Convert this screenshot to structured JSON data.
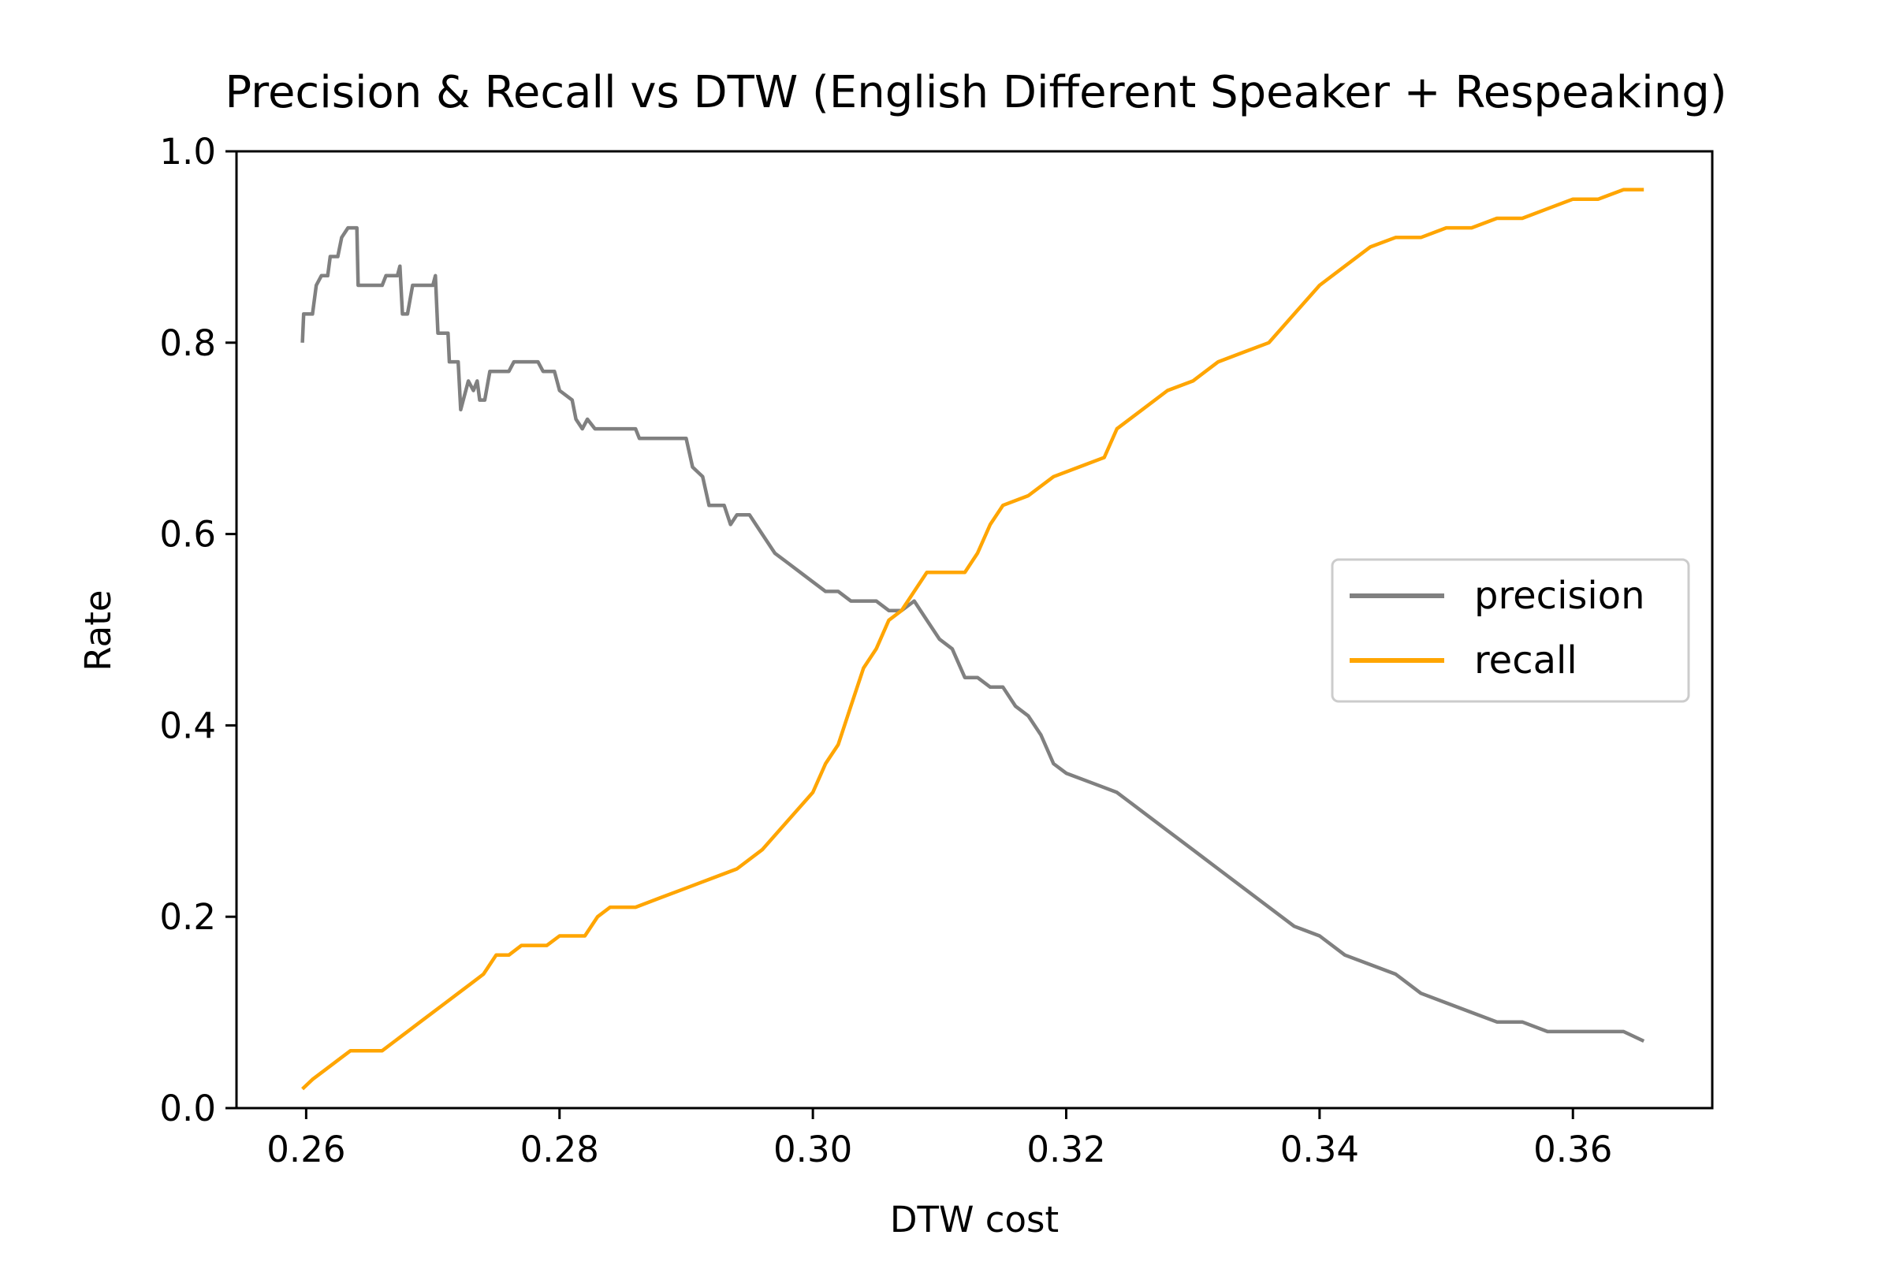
{
  "chart_data": {
    "type": "line",
    "title": "Precision & Recall vs DTW (English Different Speaker + Respeaking)",
    "xlabel": "DTW cost",
    "ylabel": "Rate",
    "xlim": [
      0.2545,
      0.371
    ],
    "ylim": [
      0.0,
      1.0
    ],
    "xticks": [
      "0.26",
      "0.28",
      "0.30",
      "0.32",
      "0.34",
      "0.36"
    ],
    "xtick_values": [
      0.26,
      0.28,
      0.3,
      0.32,
      0.34,
      0.36
    ],
    "yticks": [
      "0.0",
      "0.2",
      "0.4",
      "0.6",
      "0.8",
      "1.0"
    ],
    "ytick_values": [
      0.0,
      0.2,
      0.4,
      0.6,
      0.8,
      1.0
    ],
    "grid": false,
    "legend_position": "center-right",
    "series": [
      {
        "name": "precision",
        "color": "#808080",
        "points": [
          [
            0.2597,
            0.8
          ],
          [
            0.2598,
            0.83
          ],
          [
            0.2605,
            0.83
          ],
          [
            0.2608,
            0.86
          ],
          [
            0.2612,
            0.87
          ],
          [
            0.2617,
            0.87
          ],
          [
            0.2619,
            0.89
          ],
          [
            0.2625,
            0.89
          ],
          [
            0.2628,
            0.91
          ],
          [
            0.2633,
            0.92
          ],
          [
            0.264,
            0.92
          ],
          [
            0.2641,
            0.86
          ],
          [
            0.266,
            0.86
          ],
          [
            0.2663,
            0.87
          ],
          [
            0.2672,
            0.87
          ],
          [
            0.2674,
            0.88
          ],
          [
            0.2676,
            0.83
          ],
          [
            0.268,
            0.83
          ],
          [
            0.2684,
            0.86
          ],
          [
            0.27,
            0.86
          ],
          [
            0.2702,
            0.87
          ],
          [
            0.2704,
            0.81
          ],
          [
            0.2712,
            0.81
          ],
          [
            0.2713,
            0.78
          ],
          [
            0.272,
            0.78
          ],
          [
            0.2722,
            0.73
          ],
          [
            0.2728,
            0.76
          ],
          [
            0.2732,
            0.75
          ],
          [
            0.2735,
            0.76
          ],
          [
            0.2737,
            0.74
          ],
          [
            0.2741,
            0.74
          ],
          [
            0.2745,
            0.77
          ],
          [
            0.276,
            0.77
          ],
          [
            0.2764,
            0.78
          ],
          [
            0.2783,
            0.78
          ],
          [
            0.2787,
            0.77
          ],
          [
            0.2796,
            0.77
          ],
          [
            0.28,
            0.75
          ],
          [
            0.281,
            0.74
          ],
          [
            0.2813,
            0.72
          ],
          [
            0.2818,
            0.71
          ],
          [
            0.2822,
            0.72
          ],
          [
            0.2828,
            0.71
          ],
          [
            0.286,
            0.71
          ],
          [
            0.2863,
            0.7
          ],
          [
            0.2895,
            0.7
          ],
          [
            0.29,
            0.7
          ],
          [
            0.2905,
            0.67
          ],
          [
            0.2913,
            0.66
          ],
          [
            0.2918,
            0.63
          ],
          [
            0.293,
            0.63
          ],
          [
            0.2935,
            0.61
          ],
          [
            0.294,
            0.62
          ],
          [
            0.295,
            0.62
          ],
          [
            0.2955,
            0.61
          ],
          [
            0.296,
            0.6
          ],
          [
            0.297,
            0.58
          ],
          [
            0.298,
            0.57
          ],
          [
            0.299,
            0.56
          ],
          [
            0.3,
            0.55
          ],
          [
            0.301,
            0.54
          ],
          [
            0.302,
            0.54
          ],
          [
            0.303,
            0.53
          ],
          [
            0.304,
            0.53
          ],
          [
            0.305,
            0.53
          ],
          [
            0.306,
            0.52
          ],
          [
            0.307,
            0.52
          ],
          [
            0.308,
            0.53
          ],
          [
            0.3085,
            0.52
          ],
          [
            0.309,
            0.51
          ],
          [
            0.31,
            0.49
          ],
          [
            0.311,
            0.48
          ],
          [
            0.312,
            0.45
          ],
          [
            0.313,
            0.45
          ],
          [
            0.314,
            0.44
          ],
          [
            0.315,
            0.44
          ],
          [
            0.316,
            0.42
          ],
          [
            0.317,
            0.41
          ],
          [
            0.318,
            0.39
          ],
          [
            0.319,
            0.36
          ],
          [
            0.32,
            0.35
          ],
          [
            0.322,
            0.34
          ],
          [
            0.324,
            0.33
          ],
          [
            0.325,
            0.32
          ],
          [
            0.326,
            0.31
          ],
          [
            0.328,
            0.29
          ],
          [
            0.33,
            0.27
          ],
          [
            0.332,
            0.25
          ],
          [
            0.334,
            0.23
          ],
          [
            0.336,
            0.21
          ],
          [
            0.338,
            0.19
          ],
          [
            0.34,
            0.18
          ],
          [
            0.342,
            0.16
          ],
          [
            0.344,
            0.15
          ],
          [
            0.346,
            0.14
          ],
          [
            0.348,
            0.12
          ],
          [
            0.35,
            0.11
          ],
          [
            0.352,
            0.1
          ],
          [
            0.354,
            0.09
          ],
          [
            0.356,
            0.09
          ],
          [
            0.358,
            0.08
          ],
          [
            0.36,
            0.08
          ],
          [
            0.362,
            0.08
          ],
          [
            0.364,
            0.08
          ],
          [
            0.3656,
            0.07
          ]
        ]
      },
      {
        "name": "recall",
        "color": "#FFA500",
        "points": [
          [
            0.2597,
            0.02
          ],
          [
            0.2605,
            0.03
          ],
          [
            0.2615,
            0.04
          ],
          [
            0.2625,
            0.05
          ],
          [
            0.2635,
            0.06
          ],
          [
            0.266,
            0.06
          ],
          [
            0.267,
            0.07
          ],
          [
            0.268,
            0.08
          ],
          [
            0.269,
            0.09
          ],
          [
            0.27,
            0.1
          ],
          [
            0.271,
            0.11
          ],
          [
            0.272,
            0.12
          ],
          [
            0.273,
            0.13
          ],
          [
            0.274,
            0.14
          ],
          [
            0.275,
            0.16
          ],
          [
            0.276,
            0.16
          ],
          [
            0.277,
            0.17
          ],
          [
            0.279,
            0.17
          ],
          [
            0.28,
            0.18
          ],
          [
            0.282,
            0.18
          ],
          [
            0.283,
            0.2
          ],
          [
            0.284,
            0.21
          ],
          [
            0.286,
            0.21
          ],
          [
            0.288,
            0.22
          ],
          [
            0.29,
            0.23
          ],
          [
            0.292,
            0.24
          ],
          [
            0.294,
            0.25
          ],
          [
            0.296,
            0.27
          ],
          [
            0.298,
            0.3
          ],
          [
            0.3,
            0.33
          ],
          [
            0.301,
            0.36
          ],
          [
            0.302,
            0.38
          ],
          [
            0.303,
            0.42
          ],
          [
            0.304,
            0.46
          ],
          [
            0.305,
            0.48
          ],
          [
            0.306,
            0.51
          ],
          [
            0.307,
            0.52
          ],
          [
            0.308,
            0.54
          ],
          [
            0.309,
            0.56
          ],
          [
            0.312,
            0.56
          ],
          [
            0.313,
            0.58
          ],
          [
            0.314,
            0.61
          ],
          [
            0.315,
            0.63
          ],
          [
            0.317,
            0.64
          ],
          [
            0.319,
            0.66
          ],
          [
            0.321,
            0.67
          ],
          [
            0.323,
            0.68
          ],
          [
            0.324,
            0.71
          ],
          [
            0.326,
            0.73
          ],
          [
            0.328,
            0.75
          ],
          [
            0.33,
            0.76
          ],
          [
            0.332,
            0.78
          ],
          [
            0.334,
            0.79
          ],
          [
            0.336,
            0.8
          ],
          [
            0.338,
            0.83
          ],
          [
            0.34,
            0.86
          ],
          [
            0.342,
            0.88
          ],
          [
            0.344,
            0.9
          ],
          [
            0.346,
            0.91
          ],
          [
            0.348,
            0.91
          ],
          [
            0.35,
            0.92
          ],
          [
            0.352,
            0.92
          ],
          [
            0.354,
            0.93
          ],
          [
            0.356,
            0.93
          ],
          [
            0.358,
            0.94
          ],
          [
            0.36,
            0.95
          ],
          [
            0.362,
            0.95
          ],
          [
            0.364,
            0.96
          ],
          [
            0.3656,
            0.96
          ]
        ]
      }
    ]
  }
}
